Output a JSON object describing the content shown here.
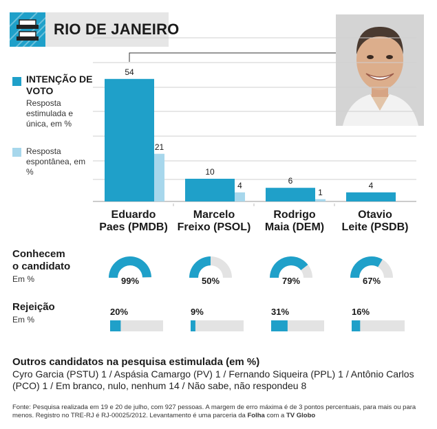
{
  "header": {
    "title": "RIO DE JANEIRO"
  },
  "legend": {
    "primary_title": "INTENÇÃO DE VOTO",
    "primary_text": "Resposta estimulada e única, em %",
    "secondary_text": "Resposta espontânea, em %"
  },
  "colors": {
    "primary": "#1fa0c9",
    "secondary": "#a7d7ec",
    "track": "#e3e3e3"
  },
  "chart_data": {
    "type": "bar",
    "title": "Intenção de voto",
    "categories": [
      "Eduardo Paes (PMDB)",
      "Marcelo Freixo (PSOL)",
      "Rodrigo Maia (DEM)",
      "Otavio Leite (PSDB)"
    ],
    "series": [
      {
        "name": "Resposta estimulada e única, em %",
        "values": [
          54,
          10,
          6,
          4
        ]
      },
      {
        "name": "Resposta espontânea, em %",
        "values": [
          21,
          4,
          1,
          null
        ]
      }
    ],
    "ylim": [
      0,
      60
    ],
    "value_labels": {
      "estimulada": [
        "54",
        "10",
        "6",
        "4"
      ],
      "espontanea": [
        "21",
        "4",
        "1",
        ""
      ]
    }
  },
  "candidates": [
    {
      "line1": "Eduardo",
      "line2": "Paes (PMDB)",
      "conhecem": 99,
      "conhecem_label": "99%",
      "rejeicao": 20,
      "rejeicao_label": "20%"
    },
    {
      "line1": "Marcelo",
      "line2": "Freixo (PSOL)",
      "conhecem": 50,
      "conhecem_label": "50%",
      "rejeicao": 9,
      "rejeicao_label": "9%"
    },
    {
      "line1": "Rodrigo",
      "line2": "Maia (DEM)",
      "conhecem": 79,
      "conhecem_label": "79%",
      "rejeicao": 31,
      "rejeicao_label": "31%"
    },
    {
      "line1": "Otavio",
      "line2": "Leite (PSDB)",
      "conhecem": 67,
      "conhecem_label": "67%",
      "rejeicao": 16,
      "rejeicao_label": "16%"
    }
  ],
  "sections": {
    "conhecem_title_1": "Conhecem",
    "conhecem_title_2": "o candidato",
    "conhecem_sub": "Em %",
    "rejeicao_title": "Rejeição",
    "rejeicao_sub": "Em %"
  },
  "others": {
    "title": "Outros candidatos na pesquisa estimulada (em %)",
    "text": "Cyro Garcia (PSTU) 1 / Aspásia Camargo (PV) 1 / Fernando Siqueira (PPL) 1 / Antônio Carlos (PCO) 1 / Em branco, nulo, nenhum 14 / Não sabe, não respondeu 8"
  },
  "source": {
    "pre": "Fonte: Pesquisa realizada em 19 e 20 de julho, com 927 pessoas. A margem de erro máxima é de 3 pontos percentuais, para mais ou para menos. Registro no TRE-RJ é RJ-00025/2012. Levantamento é uma parceria da ",
    "bold1": "Folha",
    "mid": " com a ",
    "bold2": "TV Globo"
  }
}
